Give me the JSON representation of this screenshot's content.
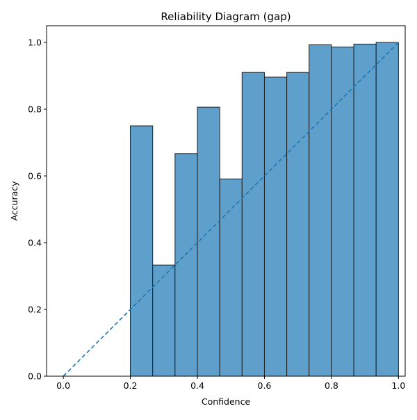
{
  "chart_data": {
    "type": "bar",
    "title": "Reliability Diagram (gap)",
    "xlabel": "Confidence",
    "ylabel": "Accuracy",
    "xlim": [
      -0.05,
      1.02
    ],
    "ylim": [
      0,
      1.05
    ],
    "xticks": [
      0.0,
      0.2,
      0.4,
      0.6,
      0.8,
      1.0
    ],
    "xtick_labels": [
      "0.0",
      "0.2",
      "0.4",
      "0.6",
      "0.8",
      "1.0"
    ],
    "yticks": [
      0.0,
      0.2,
      0.4,
      0.6,
      0.8,
      1.0
    ],
    "ytick_labels": [
      "0.0",
      "0.2",
      "0.4",
      "0.6",
      "0.8",
      "1.0"
    ],
    "grid": false,
    "bins": [
      {
        "left": 0.2,
        "right": 0.2667,
        "value": 0.75
      },
      {
        "left": 0.2667,
        "right": 0.3333,
        "value": 0.333
      },
      {
        "left": 0.3333,
        "right": 0.4,
        "value": 0.667
      },
      {
        "left": 0.4,
        "right": 0.4667,
        "value": 0.806
      },
      {
        "left": 0.4667,
        "right": 0.5333,
        "value": 0.591
      },
      {
        "left": 0.5333,
        "right": 0.6,
        "value": 0.91
      },
      {
        "left": 0.6,
        "right": 0.6667,
        "value": 0.896
      },
      {
        "left": 0.6667,
        "right": 0.7333,
        "value": 0.91
      },
      {
        "left": 0.7333,
        "right": 0.8,
        "value": 0.993
      },
      {
        "left": 0.8,
        "right": 0.8667,
        "value": 0.986
      },
      {
        "left": 0.8667,
        "right": 0.9333,
        "value": 0.995
      },
      {
        "left": 0.9333,
        "right": 1.0,
        "value": 1.0
      }
    ],
    "reference_line": {
      "x": [
        0.0,
        1.0
      ],
      "y": [
        0.0,
        1.0
      ],
      "style": "dashed"
    },
    "colors": {
      "bar_fill": "#5f9fcb",
      "bar_edge": "#1c1c1c",
      "reference_line": "#1f77b4"
    }
  }
}
